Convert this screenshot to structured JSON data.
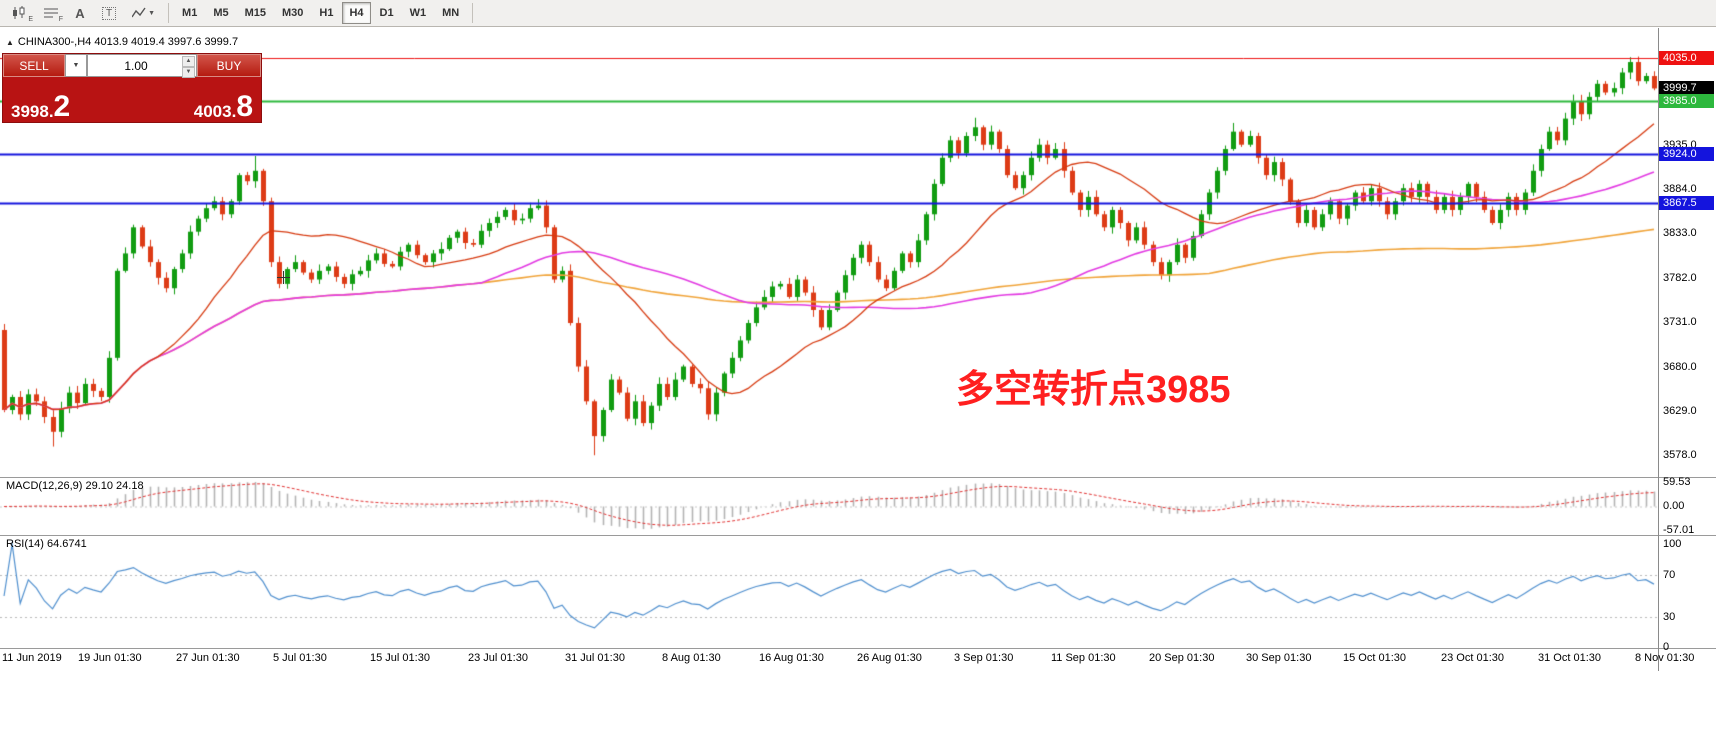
{
  "toolbar": {
    "icons": [
      {
        "name": "new-chart-icon",
        "letter": "E"
      },
      {
        "name": "profiles-icon",
        "letter": "F"
      },
      {
        "name": "text-label-icon",
        "glyph": "A"
      },
      {
        "name": "template-icon",
        "glyph": "T"
      },
      {
        "name": "indicators-icon",
        "letter": ""
      }
    ],
    "timeframes": [
      "M1",
      "M5",
      "M15",
      "M30",
      "H1",
      "H4",
      "D1",
      "W1",
      "MN"
    ],
    "active_timeframe": "H4"
  },
  "symbol_info": "CHINA300-,H4  4013.9 4019.4 3997.6 3999.7",
  "trade_panel": {
    "sell_label": "SELL",
    "buy_label": "BUY",
    "volume": "1.00",
    "sell_price": {
      "main": "3998.",
      "pips": "2"
    },
    "buy_price": {
      "main": "4003.",
      "pips": "8"
    }
  },
  "annotation": {
    "text": "多空转折点3985",
    "color": "#ff1f1f"
  },
  "price_axis": {
    "ticks": [
      "3935.0",
      "3884.0",
      "3833.0",
      "3782.0",
      "3731.0",
      "3680.0",
      "3629.0",
      "3578.0"
    ],
    "tags": [
      {
        "label": "4035.0",
        "bg": "#ee1111"
      },
      {
        "label": "3999.7",
        "bg": "#000000"
      },
      {
        "label": "3985.0",
        "bg": "#2db83d"
      },
      {
        "label": "3924.0",
        "bg": "#1414dd"
      },
      {
        "label": "3867.5",
        "bg": "#1414dd"
      }
    ]
  },
  "macd": {
    "label": "MACD(12,26,9) 29.10 24.18",
    "scale": [
      "59.53",
      "0.00",
      "-57.01"
    ]
  },
  "rsi": {
    "label": "RSI(14) 64.6741",
    "scale": [
      "100",
      "70",
      "30",
      "0"
    ]
  },
  "time_axis": [
    "11 Jun 2019",
    "19 Jun 01:30",
    "27 Jun 01:30",
    "5 Jul 01:30",
    "15 Jul 01:30",
    "23 Jul 01:30",
    "31 Jul 01:30",
    "8 Aug 01:30",
    "16 Aug 01:30",
    "26 Aug 01:30",
    "3 Sep 01:30",
    "11 Sep 01:30",
    "20 Sep 01:30",
    "30 Sep 01:30",
    "15 Oct 01:30",
    "23 Oct 01:30",
    "31 Oct 01:30",
    "8 Nov 01:30"
  ],
  "chart_data": {
    "type": "candlestick",
    "symbol": "CHINA300-",
    "timeframe": "H4",
    "title": "CHINA300-,H4",
    "ohlc_display": {
      "open": 4013.9,
      "high": 4019.4,
      "low": 3997.6,
      "close": 3999.7
    },
    "y_range": [
      3553,
      4068
    ],
    "y_ticks": [
      3935.0,
      3884.0,
      3833.0,
      3782.0,
      3731.0,
      3680.0,
      3629.0,
      3578.0
    ],
    "x_labels": [
      "11 Jun 2019",
      "19 Jun 01:30",
      "27 Jun 01:30",
      "5 Jul 01:30",
      "15 Jul 01:30",
      "23 Jul 01:30",
      "31 Jul 01:30",
      "8 Aug 01:30",
      "16 Aug 01:30",
      "26 Aug 01:30",
      "3 Sep 01:30",
      "11 Sep 01:30",
      "20 Sep 01:30",
      "30 Sep 01:30",
      "15 Oct 01:30",
      "23 Oct 01:30",
      "31 Oct 01:30",
      "8 Nov 01:30"
    ],
    "first_open": 3722,
    "closes": [
      3630,
      3645,
      3625,
      3648,
      3640,
      3622,
      3605,
      3632,
      3650,
      3638,
      3660,
      3652,
      3645,
      3690,
      3790,
      3810,
      3840,
      3818,
      3800,
      3782,
      3770,
      3792,
      3810,
      3835,
      3850,
      3862,
      3870,
      3855,
      3870,
      3900,
      3893,
      3905,
      3870,
      3800,
      3775,
      3792,
      3800,
      3788,
      3780,
      3790,
      3795,
      3783,
      3775,
      3786,
      3790,
      3802,
      3810,
      3798,
      3795,
      3812,
      3820,
      3808,
      3800,
      3810,
      3815,
      3828,
      3835,
      3822,
      3820,
      3836,
      3845,
      3852,
      3860,
      3848,
      3850,
      3862,
      3865,
      3840,
      3780,
      3790,
      3730,
      3680,
      3640,
      3600,
      3630,
      3665,
      3650,
      3620,
      3640,
      3615,
      3635,
      3660,
      3645,
      3665,
      3680,
      3660,
      3655,
      3625,
      3650,
      3672,
      3690,
      3710,
      3730,
      3748,
      3760,
      3772,
      3775,
      3760,
      3780,
      3765,
      3745,
      3725,
      3745,
      3765,
      3785,
      3805,
      3820,
      3800,
      3780,
      3770,
      3790,
      3810,
      3800,
      3825,
      3855,
      3890,
      3920,
      3940,
      3925,
      3945,
      3955,
      3935,
      3950,
      3930,
      3900,
      3885,
      3900,
      3920,
      3935,
      3920,
      3930,
      3905,
      3880,
      3860,
      3875,
      3855,
      3840,
      3860,
      3845,
      3825,
      3840,
      3820,
      3800,
      3785,
      3800,
      3820,
      3805,
      3830,
      3855,
      3880,
      3905,
      3930,
      3950,
      3935,
      3945,
      3920,
      3900,
      3915,
      3895,
      3870,
      3845,
      3860,
      3840,
      3855,
      3870,
      3850,
      3865,
      3880,
      3870,
      3885,
      3870,
      3855,
      3870,
      3885,
      3875,
      3890,
      3875,
      3860,
      3875,
      3860,
      3875,
      3890,
      3875,
      3860,
      3845,
      3860,
      3875,
      3860,
      3880,
      3905,
      3930,
      3950,
      3940,
      3965,
      3985,
      3970,
      3990,
      4005,
      3995,
      4000,
      4018,
      4030,
      4008,
      4014,
      4000
    ],
    "last_candle": {
      "o": 4013.9,
      "h": 4019.4,
      "l": 3997.6,
      "c": 3999.7
    },
    "extremes": [
      {
        "index": 6,
        "type": "low",
        "price": 3588
      },
      {
        "index": 31,
        "type": "high",
        "price": 3922
      },
      {
        "index": 73,
        "type": "low",
        "price": 3578
      },
      {
        "index": 120,
        "type": "high",
        "price": 3966
      },
      {
        "index": 152,
        "type": "high",
        "price": 3960
      },
      {
        "index": 201,
        "type": "high",
        "price": 4035
      }
    ],
    "hlines": [
      {
        "price": 4035.0,
        "color": "#ee1111",
        "width": 1
      },
      {
        "price": 3985.0,
        "color": "#2db83d",
        "width": 2
      },
      {
        "price": 3924.0,
        "color": "#1414dd",
        "width": 2
      },
      {
        "price": 3867.5,
        "color": "#1414dd",
        "width": 2
      }
    ],
    "moving_averages": [
      {
        "period": 150,
        "color": "#f0a43a",
        "width": 1.6
      },
      {
        "period": 60,
        "color": "#e23ae2",
        "width": 1.6
      },
      {
        "period": 20,
        "color": "#d6390f",
        "width": 1.3
      }
    ],
    "colors": {
      "bull": "#119c11",
      "bear": "#dd3b16"
    },
    "macd": {
      "fast": 12,
      "slow": 26,
      "signal": 9,
      "hist_color": "#b4b4b4",
      "signal_color": "#e03030",
      "current_main": 29.1,
      "current_signal": 24.18
    },
    "rsi": {
      "period": 14,
      "color": "#4f8fce",
      "levels": [
        70,
        30
      ],
      "current": 64.6741
    }
  }
}
